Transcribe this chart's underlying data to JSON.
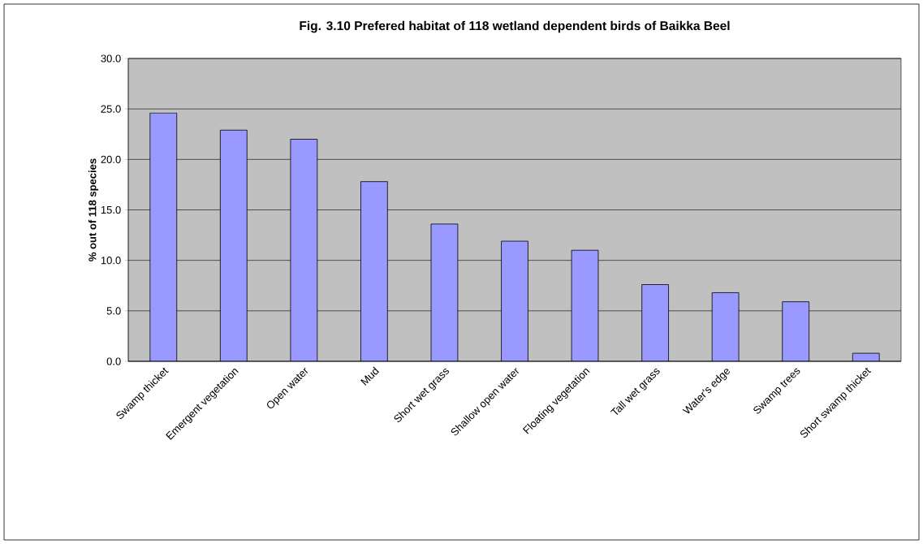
{
  "chart_data": {
    "type": "bar",
    "title": "Fig. 3.10 Prefered habitat of 118 wetland dependent birds of Baikka Beel",
    "ylabel": "% out of 118 species",
    "categories": [
      "Swamp thicket",
      "Emergent vegetation",
      "Open water",
      "Mud",
      "Short wet grass",
      "Shallow open water",
      "Floating vegetation",
      "Tall wet grass",
      "Water's edge",
      "Swamp trees",
      "Short swamp thicket"
    ],
    "values": [
      24.6,
      22.9,
      22.0,
      17.8,
      13.6,
      11.9,
      11.0,
      7.6,
      6.8,
      5.9,
      0.8
    ],
    "color": "#9999ff",
    "ylim": [
      0,
      30
    ],
    "yticks": [
      {
        "value": 0,
        "label": "0.0"
      },
      {
        "value": 5,
        "label": "5.0"
      },
      {
        "value": 10,
        "label": "10.0"
      },
      {
        "value": 15,
        "label": "15.0"
      },
      {
        "value": 20,
        "label": "20.0"
      },
      {
        "value": 25,
        "label": "25.0"
      },
      {
        "value": 30,
        "label": "30.0"
      }
    ],
    "grid": "y"
  }
}
